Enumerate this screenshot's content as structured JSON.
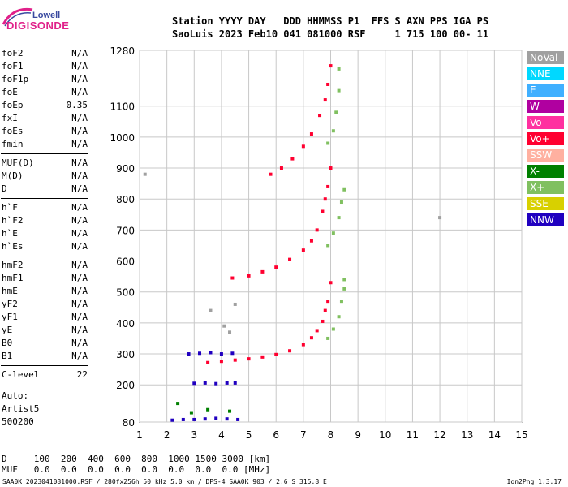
{
  "logo": {
    "line1": "Lowell",
    "line2": "DIGISONDE"
  },
  "header": {
    "row1": "Station YYYY DAY   DDD HHMMSS P1  FFS S AXN PPS IGA PS",
    "row2": "SaoLuis 2023 Feb10 041 081000 RSF     1 715 100 00- 11"
  },
  "params_groups": [
    [
      {
        "name": "foF2",
        "value": "N/A"
      },
      {
        "name": "foF1",
        "value": "N/A"
      },
      {
        "name": "foF1p",
        "value": "N/A"
      },
      {
        "name": "foE",
        "value": "N/A"
      },
      {
        "name": "foEp",
        "value": "0.35"
      },
      {
        "name": "fxI",
        "value": "N/A"
      },
      {
        "name": "foEs",
        "value": "N/A"
      },
      {
        "name": "fmin",
        "value": "N/A"
      }
    ],
    [
      {
        "name": "MUF(D)",
        "value": "N/A"
      },
      {
        "name": "M(D)",
        "value": "N/A"
      },
      {
        "name": "D",
        "value": "N/A"
      }
    ],
    [
      {
        "name": "h`F",
        "value": "N/A"
      },
      {
        "name": "h`F2",
        "value": "N/A"
      },
      {
        "name": "h`E",
        "value": "N/A"
      },
      {
        "name": "h`Es",
        "value": "N/A"
      }
    ],
    [
      {
        "name": "hmF2",
        "value": "N/A"
      },
      {
        "name": "hmF1",
        "value": "N/A"
      },
      {
        "name": "hmE",
        "value": "N/A"
      },
      {
        "name": "yF2",
        "value": "N/A"
      },
      {
        "name": "yF1",
        "value": "N/A"
      },
      {
        "name": "yE",
        "value": "N/A"
      },
      {
        "name": "B0",
        "value": "N/A"
      },
      {
        "name": "B1",
        "value": "N/A"
      }
    ],
    [
      {
        "name": "C-level",
        "value": "22"
      }
    ]
  ],
  "auto": {
    "line1": "Auto:",
    "line2": "Artist5",
    "line3": "500200"
  },
  "muf_table": {
    "row_d": "D     100  200  400  600  800  1000 1500 3000 [km]",
    "row_muf": "MUF   0.0  0.0  0.0  0.0  0.0  0.0  0.0  0.0 [MHz]"
  },
  "footer": {
    "left": "SAA0K_2023041081000.RSF / 280fx256h 50 kHz 5.0 km / DPS-4 SAA0K 903 / 2.6 S 315.8 E",
    "right": "Ion2Png 1.3.17"
  },
  "legend": [
    {
      "label": "NoVal",
      "color": "#a0a0a0"
    },
    {
      "label": "NNE",
      "color": "#00d8ff"
    },
    {
      "label": "E",
      "color": "#40b0ff"
    },
    {
      "label": "W",
      "color": "#b000a0"
    },
    {
      "label": "Vo-",
      "color": "#ff30a0"
    },
    {
      "label": "Vo+",
      "color": "#ff0030"
    },
    {
      "label": "SSW",
      "color": "#ffb0a0"
    },
    {
      "label": "X-",
      "color": "#008000"
    },
    {
      "label": "X+",
      "color": "#80c060"
    },
    {
      "label": "SSE",
      "color": "#d8d000"
    },
    {
      "label": "NNW",
      "color": "#2000c0"
    }
  ],
  "chart_data": {
    "type": "scatter",
    "title": "",
    "xlabel": "",
    "ylabel": "",
    "xlim": [
      1,
      15
    ],
    "ylim": [
      80,
      1280
    ],
    "x_ticks": [
      1,
      2,
      3,
      4,
      5,
      6,
      7,
      8,
      9,
      10,
      11,
      12,
      13,
      14,
      15
    ],
    "y_ticks": [
      80,
      200,
      300,
      400,
      500,
      600,
      700,
      800,
      900,
      1000,
      1100,
      1280
    ],
    "grid": true,
    "series": [
      {
        "name": "Vo+",
        "color": "#ff0030",
        "points": [
          [
            3.5,
            272
          ],
          [
            4.0,
            276
          ],
          [
            4.5,
            280
          ],
          [
            5.0,
            284
          ],
          [
            5.5,
            290
          ],
          [
            6.0,
            298
          ],
          [
            6.5,
            310
          ],
          [
            7.0,
            330
          ],
          [
            7.3,
            352
          ],
          [
            7.5,
            375
          ],
          [
            7.7,
            405
          ],
          [
            7.8,
            440
          ],
          [
            7.9,
            470
          ],
          [
            8.0,
            530
          ]
        ]
      },
      {
        "name": "Vo+",
        "color": "#ff0030",
        "points": [
          [
            4.4,
            545
          ],
          [
            5.0,
            552
          ],
          [
            5.5,
            565
          ],
          [
            6.0,
            580
          ],
          [
            6.5,
            605
          ],
          [
            7.0,
            635
          ],
          [
            7.3,
            665
          ],
          [
            7.5,
            700
          ],
          [
            7.7,
            760
          ],
          [
            7.8,
            800
          ],
          [
            7.9,
            840
          ],
          [
            8.0,
            900
          ]
        ]
      },
      {
        "name": "Vo+",
        "color": "#ff0030",
        "points": [
          [
            5.8,
            880
          ],
          [
            6.2,
            900
          ],
          [
            6.6,
            930
          ],
          [
            7.0,
            970
          ],
          [
            7.3,
            1010
          ],
          [
            7.6,
            1070
          ],
          [
            7.8,
            1120
          ],
          [
            7.9,
            1170
          ],
          [
            8.0,
            1230
          ]
        ]
      },
      {
        "name": "X+",
        "color": "#80c060",
        "points": [
          [
            7.9,
            350
          ],
          [
            8.1,
            380
          ],
          [
            8.3,
            420
          ],
          [
            8.4,
            470
          ],
          [
            8.5,
            510
          ],
          [
            8.5,
            540
          ]
        ]
      },
      {
        "name": "X+",
        "color": "#80c060",
        "points": [
          [
            7.9,
            650
          ],
          [
            8.1,
            690
          ],
          [
            8.3,
            740
          ],
          [
            8.4,
            790
          ],
          [
            8.5,
            830
          ]
        ]
      },
      {
        "name": "X+",
        "color": "#80c060",
        "points": [
          [
            7.9,
            980
          ],
          [
            8.1,
            1020
          ],
          [
            8.2,
            1080
          ],
          [
            8.3,
            1150
          ],
          [
            8.3,
            1220
          ]
        ]
      },
      {
        "name": "NNW",
        "color": "#2000c0",
        "points": [
          [
            2.2,
            86
          ],
          [
            2.6,
            88
          ],
          [
            3.0,
            88
          ],
          [
            3.4,
            90
          ],
          [
            3.8,
            92
          ],
          [
            4.2,
            90
          ],
          [
            4.6,
            88
          ]
        ]
      },
      {
        "name": "NNW",
        "color": "#2000c0",
        "points": [
          [
            3.0,
            205
          ],
          [
            3.4,
            206
          ],
          [
            3.8,
            204
          ],
          [
            4.2,
            206
          ],
          [
            4.5,
            206
          ]
        ]
      },
      {
        "name": "NNW",
        "color": "#2000c0",
        "points": [
          [
            2.8,
            300
          ],
          [
            3.2,
            302
          ],
          [
            3.6,
            304
          ],
          [
            4.0,
            300
          ],
          [
            4.4,
            302
          ]
        ]
      },
      {
        "name": "X-",
        "color": "#008000",
        "points": [
          [
            2.4,
            140
          ],
          [
            2.9,
            110
          ],
          [
            3.5,
            120
          ],
          [
            4.3,
            115
          ]
        ]
      },
      {
        "name": "NoVal",
        "color": "#a0a0a0",
        "points": [
          [
            3.6,
            440
          ],
          [
            4.1,
            390
          ],
          [
            4.3,
            370
          ],
          [
            4.5,
            460
          ],
          [
            12.0,
            740
          ],
          [
            1.2,
            880
          ]
        ]
      }
    ]
  }
}
